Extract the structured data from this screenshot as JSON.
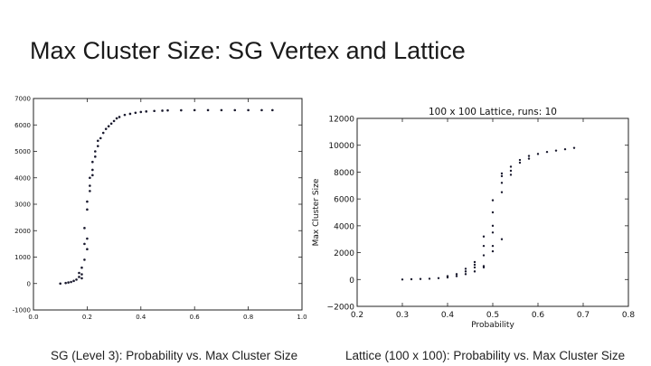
{
  "slide": {
    "title": "Max Cluster Size: SG Vertex and Lattice",
    "caption_left": "SG (Level 3): Probability vs. Max Cluster Size",
    "caption_right": "Lattice (100 x 100): Probability vs. Max Cluster Size"
  },
  "colors": {
    "point": "#1a1a2e",
    "axis": "#222222",
    "background": "#ffffff"
  },
  "chart_data": [
    {
      "type": "scatter",
      "title": "",
      "xlabel": "",
      "ylabel": "",
      "xlim": [
        0.0,
        1.0
      ],
      "ylim": [
        -1000,
        7000
      ],
      "xticks": [
        0.0,
        0.2,
        0.4,
        0.6,
        0.8,
        1.0
      ],
      "xtick_labels": [
        "0.0",
        "0.2",
        "0.4",
        "0.6",
        "0.8",
        "1.0"
      ],
      "yticks": [
        -1000,
        0,
        1000,
        2000,
        3000,
        4000,
        5000,
        6000,
        7000
      ],
      "ytick_labels": [
        "-1000",
        "0",
        "1000",
        "2000",
        "3000",
        "4000",
        "5000",
        "6000",
        "7000"
      ],
      "grid": false,
      "series": [
        {
          "x": [
            0.1,
            0.12,
            0.13,
            0.14,
            0.15,
            0.16,
            0.17,
            0.17,
            0.18,
            0.18,
            0.18,
            0.19,
            0.19,
            0.19,
            0.2,
            0.2,
            0.2,
            0.2,
            0.21,
            0.21,
            0.21,
            0.22,
            0.22,
            0.22,
            0.23,
            0.23,
            0.24,
            0.24,
            0.25,
            0.26,
            0.27,
            0.28,
            0.29,
            0.3,
            0.31,
            0.32,
            0.34,
            0.36,
            0.38,
            0.4,
            0.42,
            0.45,
            0.48,
            0.5,
            0.55,
            0.6,
            0.65,
            0.7,
            0.75,
            0.8,
            0.85,
            0.89
          ],
          "y": [
            0,
            20,
            40,
            60,
            100,
            150,
            250,
            400,
            350,
            600,
            200,
            1500,
            900,
            2100,
            2800,
            3100,
            1300,
            1700,
            3700,
            3500,
            4000,
            4300,
            4600,
            4100,
            4800,
            5000,
            5200,
            5400,
            5500,
            5700,
            5850,
            5950,
            6050,
            6150,
            6250,
            6300,
            6380,
            6420,
            6460,
            6490,
            6510,
            6530,
            6540,
            6550,
            6555,
            6560,
            6560,
            6560,
            6560,
            6560,
            6560,
            6560
          ]
        }
      ]
    },
    {
      "type": "scatter",
      "title": "100 x 100 Lattice, runs: 10",
      "xlabel": "Probability",
      "ylabel": "Max Cluster Size",
      "xlim": [
        0.2,
        0.8
      ],
      "ylim": [
        -2000,
        12000
      ],
      "xticks": [
        0.2,
        0.3,
        0.4,
        0.5,
        0.6,
        0.7,
        0.8
      ],
      "xtick_labels": [
        "0.2",
        "0.3",
        "0.4",
        "0.5",
        "0.6",
        "0.7",
        "0.8"
      ],
      "yticks": [
        -2000,
        0,
        2000,
        4000,
        6000,
        8000,
        10000,
        12000
      ],
      "ytick_labels": [
        "−2000",
        "0",
        "2000",
        "4000",
        "6000",
        "8000",
        "10000",
        "12000"
      ],
      "grid": false,
      "series": [
        {
          "x": [
            0.3,
            0.32,
            0.34,
            0.36,
            0.38,
            0.4,
            0.4,
            0.42,
            0.42,
            0.44,
            0.44,
            0.44,
            0.46,
            0.46,
            0.46,
            0.46,
            0.48,
            0.48,
            0.48,
            0.48,
            0.48,
            0.5,
            0.5,
            0.5,
            0.5,
            0.5,
            0.5,
            0.52,
            0.52,
            0.52,
            0.52,
            0.52,
            0.54,
            0.54,
            0.54,
            0.56,
            0.56,
            0.58,
            0.58,
            0.6,
            0.62,
            0.64,
            0.66,
            0.68
          ],
          "y": [
            0,
            20,
            40,
            60,
            100,
            150,
            250,
            250,
            400,
            400,
            600,
            800,
            600,
            900,
            1100,
            1300,
            1000,
            1800,
            2500,
            3200,
            900,
            2500,
            3500,
            4000,
            5000,
            5900,
            2100,
            6500,
            7200,
            7700,
            7900,
            3000,
            8100,
            8400,
            7800,
            8700,
            8900,
            9000,
            9200,
            9350,
            9500,
            9600,
            9700,
            9800
          ]
        }
      ]
    }
  ]
}
